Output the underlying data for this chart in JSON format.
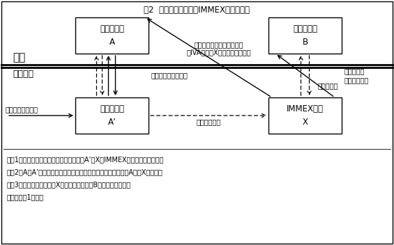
{
  "title": "図2  外国居住者と国内IMMEX企業の取引",
  "bg_color": "#ffffff",
  "box_A_label": "外国居住者\nA",
  "box_B_label": "外国居住者\nB",
  "box_Ap_label": "マキラ法人\nA’",
  "box_X_label": "IMMEX企業\nX",
  "label_foreign": "外国",
  "label_mexico": "メキシコ",
  "note1": "（注1）点線は物流、実線は商流を表す。A’とXはIMMEXプログラムを活用。",
  "note2": "（注2）AとA’はマキラドーラ契約を締結。中間製品の所有権はAからXに移る。",
  "note3": "（注3）完成品の所有権もXが持ち、輸出後にBに所有権が移る。",
  "note4": "（出所）図1に同じ",
  "lbl_parts": "部品・原材料支給",
  "lbl_processing": "加工費請求・支払い",
  "lbl_transfer": "中間製品移転",
  "lbl_inter_pay1": "中間製品代金請求・支払い",
  "lbl_inter_pay2": "（IVA課税、Xが国内源泉払い）",
  "lbl_finished_export": "完成品輸出",
  "lbl_finished_pay1": "完成品代金",
  "lbl_finished_pay2": "請求・支払い"
}
